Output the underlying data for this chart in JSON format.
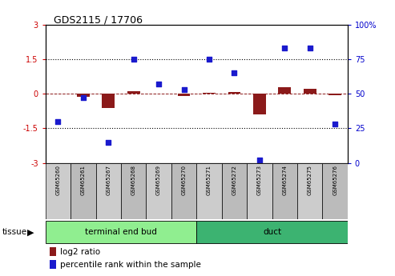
{
  "title": "GDS2115 / 17706",
  "samples": [
    "GSM65260",
    "GSM65261",
    "GSM65267",
    "GSM65268",
    "GSM65269",
    "GSM65270",
    "GSM65271",
    "GSM65272",
    "GSM65273",
    "GSM65274",
    "GSM65275",
    "GSM65276"
  ],
  "log2_ratio": [
    0.0,
    -0.12,
    -0.62,
    0.1,
    0.02,
    -0.08,
    0.05,
    0.08,
    -0.88,
    0.28,
    0.22,
    -0.05
  ],
  "percentile_rank": [
    30,
    47,
    15,
    75,
    57,
    53,
    75,
    65,
    2,
    83,
    83,
    28
  ],
  "tissue_groups": [
    {
      "label": "terminal end bud",
      "start": 0,
      "end": 6,
      "color": "#90ee90"
    },
    {
      "label": "duct",
      "start": 6,
      "end": 12,
      "color": "#3cb371"
    }
  ],
  "ylim_left": [
    -3,
    3
  ],
  "ylim_right": [
    0,
    100
  ],
  "yticks_left": [
    -3,
    -1.5,
    0,
    1.5,
    3
  ],
  "yticks_right": [
    0,
    25,
    50,
    75,
    100
  ],
  "ytick_labels_right": [
    "0",
    "25",
    "50",
    "75",
    "100%"
  ],
  "hlines": [
    1.5,
    -1.5
  ],
  "bar_color": "#8B1A1A",
  "dot_color": "#1a1acd",
  "legend_bar_label": "log2 ratio",
  "legend_dot_label": "percentile rank within the sample",
  "tissue_label": "tissue",
  "background_color": "#ffffff",
  "plot_bg_color": "#ffffff",
  "bar_width": 0.5,
  "dot_size": 22,
  "cell_color": "#cccccc",
  "cell_color_dark": "#bbbbbb"
}
